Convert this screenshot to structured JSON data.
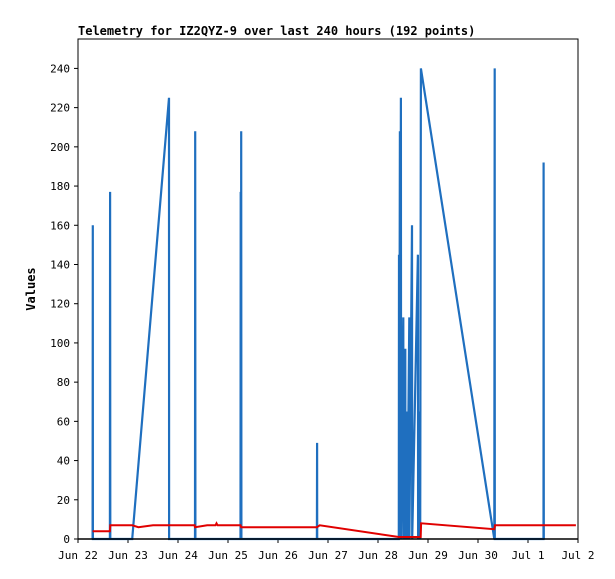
{
  "chart_data": {
    "type": "line",
    "title": "Telemetry for IZ2QYZ-9 over last 240 hours (192 points)",
    "xlabel": "",
    "ylabel": "Values",
    "x_range": [
      "2025-06-22T00:00",
      "2025-07-02T00:00"
    ],
    "ylim": [
      0,
      255
    ],
    "y_ticks": [
      0,
      20,
      40,
      60,
      80,
      100,
      120,
      140,
      160,
      180,
      200,
      220,
      240
    ],
    "x_ticks": [
      {
        "t": "2025-06-22T00:00",
        "label": "Jun 22"
      },
      {
        "t": "2025-06-23T00:00",
        "label": "Jun 23"
      },
      {
        "t": "2025-06-24T00:00",
        "label": "Jun 24"
      },
      {
        "t": "2025-06-25T00:00",
        "label": "Jun 25"
      },
      {
        "t": "2025-06-26T00:00",
        "label": "Jun 26"
      },
      {
        "t": "2025-06-27T00:00",
        "label": "Jun 27"
      },
      {
        "t": "2025-06-28T00:00",
        "label": "Jun 28"
      },
      {
        "t": "2025-06-29T00:00",
        "label": "Jun 29"
      },
      {
        "t": "2025-06-30T00:00",
        "label": "Jun 30"
      },
      {
        "t": "2025-07-01T00:00",
        "label": "Jul 1"
      },
      {
        "t": "2025-07-02T00:00",
        "label": "Jul 2"
      }
    ],
    "grid": false,
    "series": [
      {
        "color": "#1f6fbf",
        "points": [
          [
            "2025-06-22T07:00",
            0
          ],
          [
            "2025-06-22T07:05",
            160
          ],
          [
            "2025-06-22T07:10",
            0
          ],
          [
            "2025-06-22T15:20",
            0
          ],
          [
            "2025-06-22T15:25",
            177
          ],
          [
            "2025-06-22T15:30",
            0
          ],
          [
            "2025-06-23T02:00",
            0
          ],
          [
            "2025-06-23T19:40",
            225
          ],
          [
            "2025-06-23T19:45",
            0
          ],
          [
            "2025-06-24T08:10",
            0
          ],
          [
            "2025-06-24T08:15",
            208
          ],
          [
            "2025-06-24T08:20",
            0
          ],
          [
            "2025-06-25T06:00",
            0
          ],
          [
            "2025-06-25T06:05",
            177
          ],
          [
            "2025-06-25T06:15",
            0
          ],
          [
            "2025-06-25T06:20",
            208
          ],
          [
            "2025-06-25T06:25",
            0
          ],
          [
            "2025-06-26T18:40",
            0
          ],
          [
            "2025-06-26T18:45",
            49
          ],
          [
            "2025-06-26T18:50",
            0
          ],
          [
            "2025-06-28T10:00",
            0
          ],
          [
            "2025-06-28T10:05",
            145
          ],
          [
            "2025-06-28T10:10",
            0
          ],
          [
            "2025-06-28T10:30",
            208
          ],
          [
            "2025-06-28T10:35",
            0
          ],
          [
            "2025-06-28T11:00",
            225
          ],
          [
            "2025-06-28T11:05",
            0
          ],
          [
            "2025-06-28T12:10",
            113
          ],
          [
            "2025-06-28T12:15",
            0
          ],
          [
            "2025-06-28T13:05",
            97
          ],
          [
            "2025-06-28T13:10",
            0
          ],
          [
            "2025-06-28T14:00",
            65
          ],
          [
            "2025-06-28T14:05",
            0
          ],
          [
            "2025-06-28T15:00",
            113
          ],
          [
            "2025-06-28T15:05",
            0
          ],
          [
            "2025-06-28T16:20",
            160
          ],
          [
            "2025-06-28T16:25",
            0
          ],
          [
            "2025-06-28T19:10",
            145
          ],
          [
            "2025-06-28T19:15",
            0
          ],
          [
            "2025-06-28T20:10",
            65
          ],
          [
            "2025-06-28T20:15",
            0
          ],
          [
            "2025-06-28T20:35",
            240
          ],
          [
            "2025-06-30T07:50",
            0
          ],
          [
            "2025-06-30T08:00",
            240
          ],
          [
            "2025-06-30T08:05",
            0
          ],
          [
            "2025-07-01T07:25",
            0
          ],
          [
            "2025-07-01T07:30",
            192
          ],
          [
            "2025-07-01T07:35",
            0
          ]
        ]
      },
      {
        "color": "#e00000",
        "points": [
          [
            "2025-06-22T07:00",
            4
          ],
          [
            "2025-06-22T15:20",
            4
          ],
          [
            "2025-06-22T15:30",
            7
          ],
          [
            "2025-06-23T02:00",
            7
          ],
          [
            "2025-06-23T05:00",
            6
          ],
          [
            "2025-06-23T12:00",
            7
          ],
          [
            "2025-06-24T08:00",
            7
          ],
          [
            "2025-06-24T08:10",
            6
          ],
          [
            "2025-06-24T14:00",
            7
          ],
          [
            "2025-06-24T18:00",
            7
          ],
          [
            "2025-06-24T18:30",
            8
          ],
          [
            "2025-06-24T19:00",
            7
          ],
          [
            "2025-06-25T06:00",
            7
          ],
          [
            "2025-06-25T06:20",
            6
          ],
          [
            "2025-06-26T18:40",
            6
          ],
          [
            "2025-06-26T20:00",
            7
          ],
          [
            "2025-06-28T10:00",
            1
          ],
          [
            "2025-06-28T20:30",
            1
          ],
          [
            "2025-06-28T20:40",
            8
          ],
          [
            "2025-06-30T07:50",
            5
          ],
          [
            "2025-06-30T08:10",
            7
          ],
          [
            "2025-07-01T23:00",
            7
          ]
        ]
      }
    ]
  }
}
